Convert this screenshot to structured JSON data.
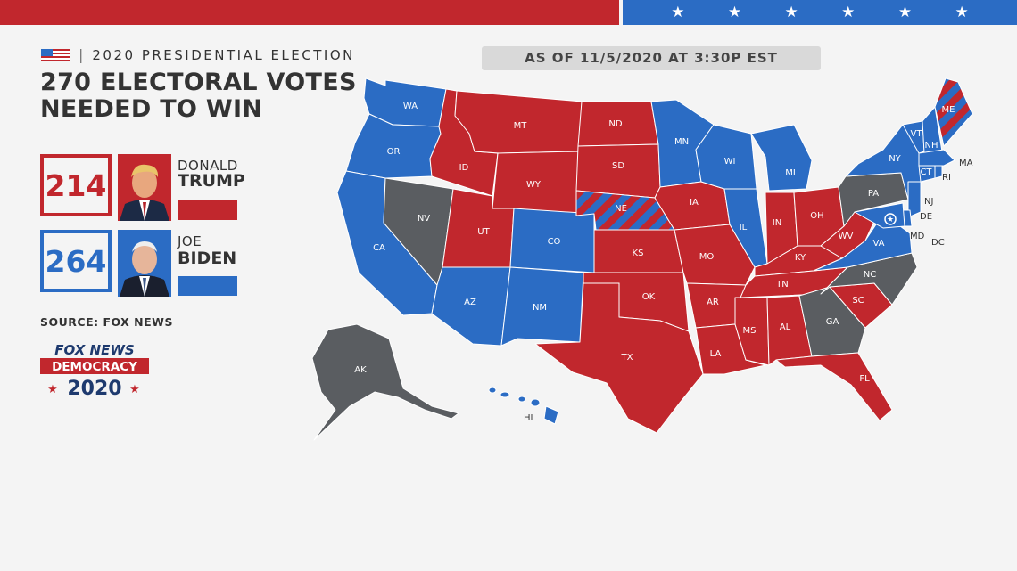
{
  "header": {
    "section_title": "2020 PRESIDENTIAL ELECTION",
    "title_line1": "270 ELECTORAL VOTES",
    "title_line2": "NEEDED TO WIN",
    "as_of": "AS OF 11/5/2020 AT 3:30P EST"
  },
  "colors": {
    "republican": "#c1272d",
    "democrat": "#2b6cc4",
    "undecided": "#5a5d61",
    "background": "#f4f4f4"
  },
  "candidates": [
    {
      "first": "DONALD",
      "last": "TRUMP",
      "votes": "214",
      "party_color": "#c1272d"
    },
    {
      "first": "JOE",
      "last": "BIDEN",
      "votes": "264",
      "party_color": "#2b6cc4"
    }
  ],
  "source": "SOURCE: FOX NEWS",
  "logo": {
    "line1": "FOX NEWS",
    "line2": "DEMOCRACY",
    "line3": "2020"
  },
  "states": {
    "WA": "WA",
    "OR": "OR",
    "CA": "CA",
    "NV": "NV",
    "ID": "ID",
    "MT": "MT",
    "WY": "WY",
    "UT": "UT",
    "CO": "CO",
    "AZ": "AZ",
    "NM": "NM",
    "ND": "ND",
    "SD": "SD",
    "NE": "NE",
    "KS": "KS",
    "OK": "OK",
    "TX": "TX",
    "MN": "MN",
    "IA": "IA",
    "MO": "MO",
    "AR": "AR",
    "LA": "LA",
    "WI": "WI",
    "IL": "IL",
    "MI": "MI",
    "IN": "IN",
    "OH": "OH",
    "KY": "KY",
    "TN": "TN",
    "MS": "MS",
    "AL": "AL",
    "GA": "GA",
    "FL": "FL",
    "SC": "SC",
    "NC": "NC",
    "VA": "VA",
    "WV": "WV",
    "PA": "PA",
    "NY": "NY",
    "VT": "VT",
    "NH": "NH",
    "ME": "ME",
    "MA": "MA",
    "CT": "CT",
    "RI": "RI",
    "NJ": "NJ",
    "DE": "DE",
    "MD": "MD",
    "DC": "DC",
    "AK": "AK",
    "HI": "HI"
  }
}
